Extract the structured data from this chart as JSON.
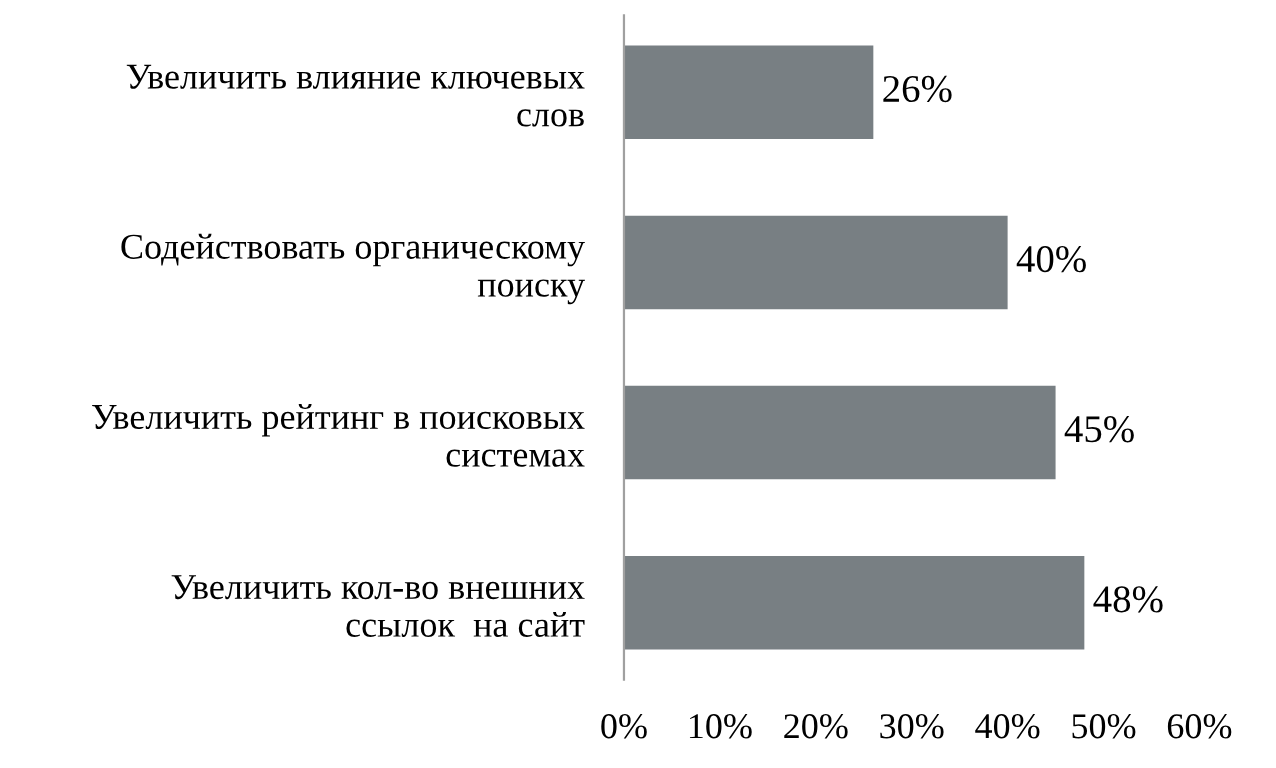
{
  "chart_data": {
    "type": "bar",
    "orientation": "horizontal",
    "categories": [
      "Увеличить влияние ключевых\nслов",
      "Содействовать органическому\nпоиску",
      "Увеличить рейтинг в поисковых\nсистемах",
      "Увеличить кол-во внешних\nссылок  на сайт"
    ],
    "values": [
      26,
      40,
      45,
      48
    ],
    "value_labels": [
      "26%",
      "40%",
      "45%",
      "48%"
    ],
    "color": "#787f83",
    "xlim": [
      0,
      60
    ],
    "xticks": [
      {
        "value": 0,
        "label": "0%"
      },
      {
        "value": 10,
        "label": "10%"
      },
      {
        "value": 20,
        "label": "20%"
      },
      {
        "value": 30,
        "label": "30%"
      },
      {
        "value": 40,
        "label": "40%"
      },
      {
        "value": 50,
        "label": "50%"
      },
      {
        "value": 60,
        "label": "60%"
      }
    ],
    "grid": false,
    "legend": false
  }
}
